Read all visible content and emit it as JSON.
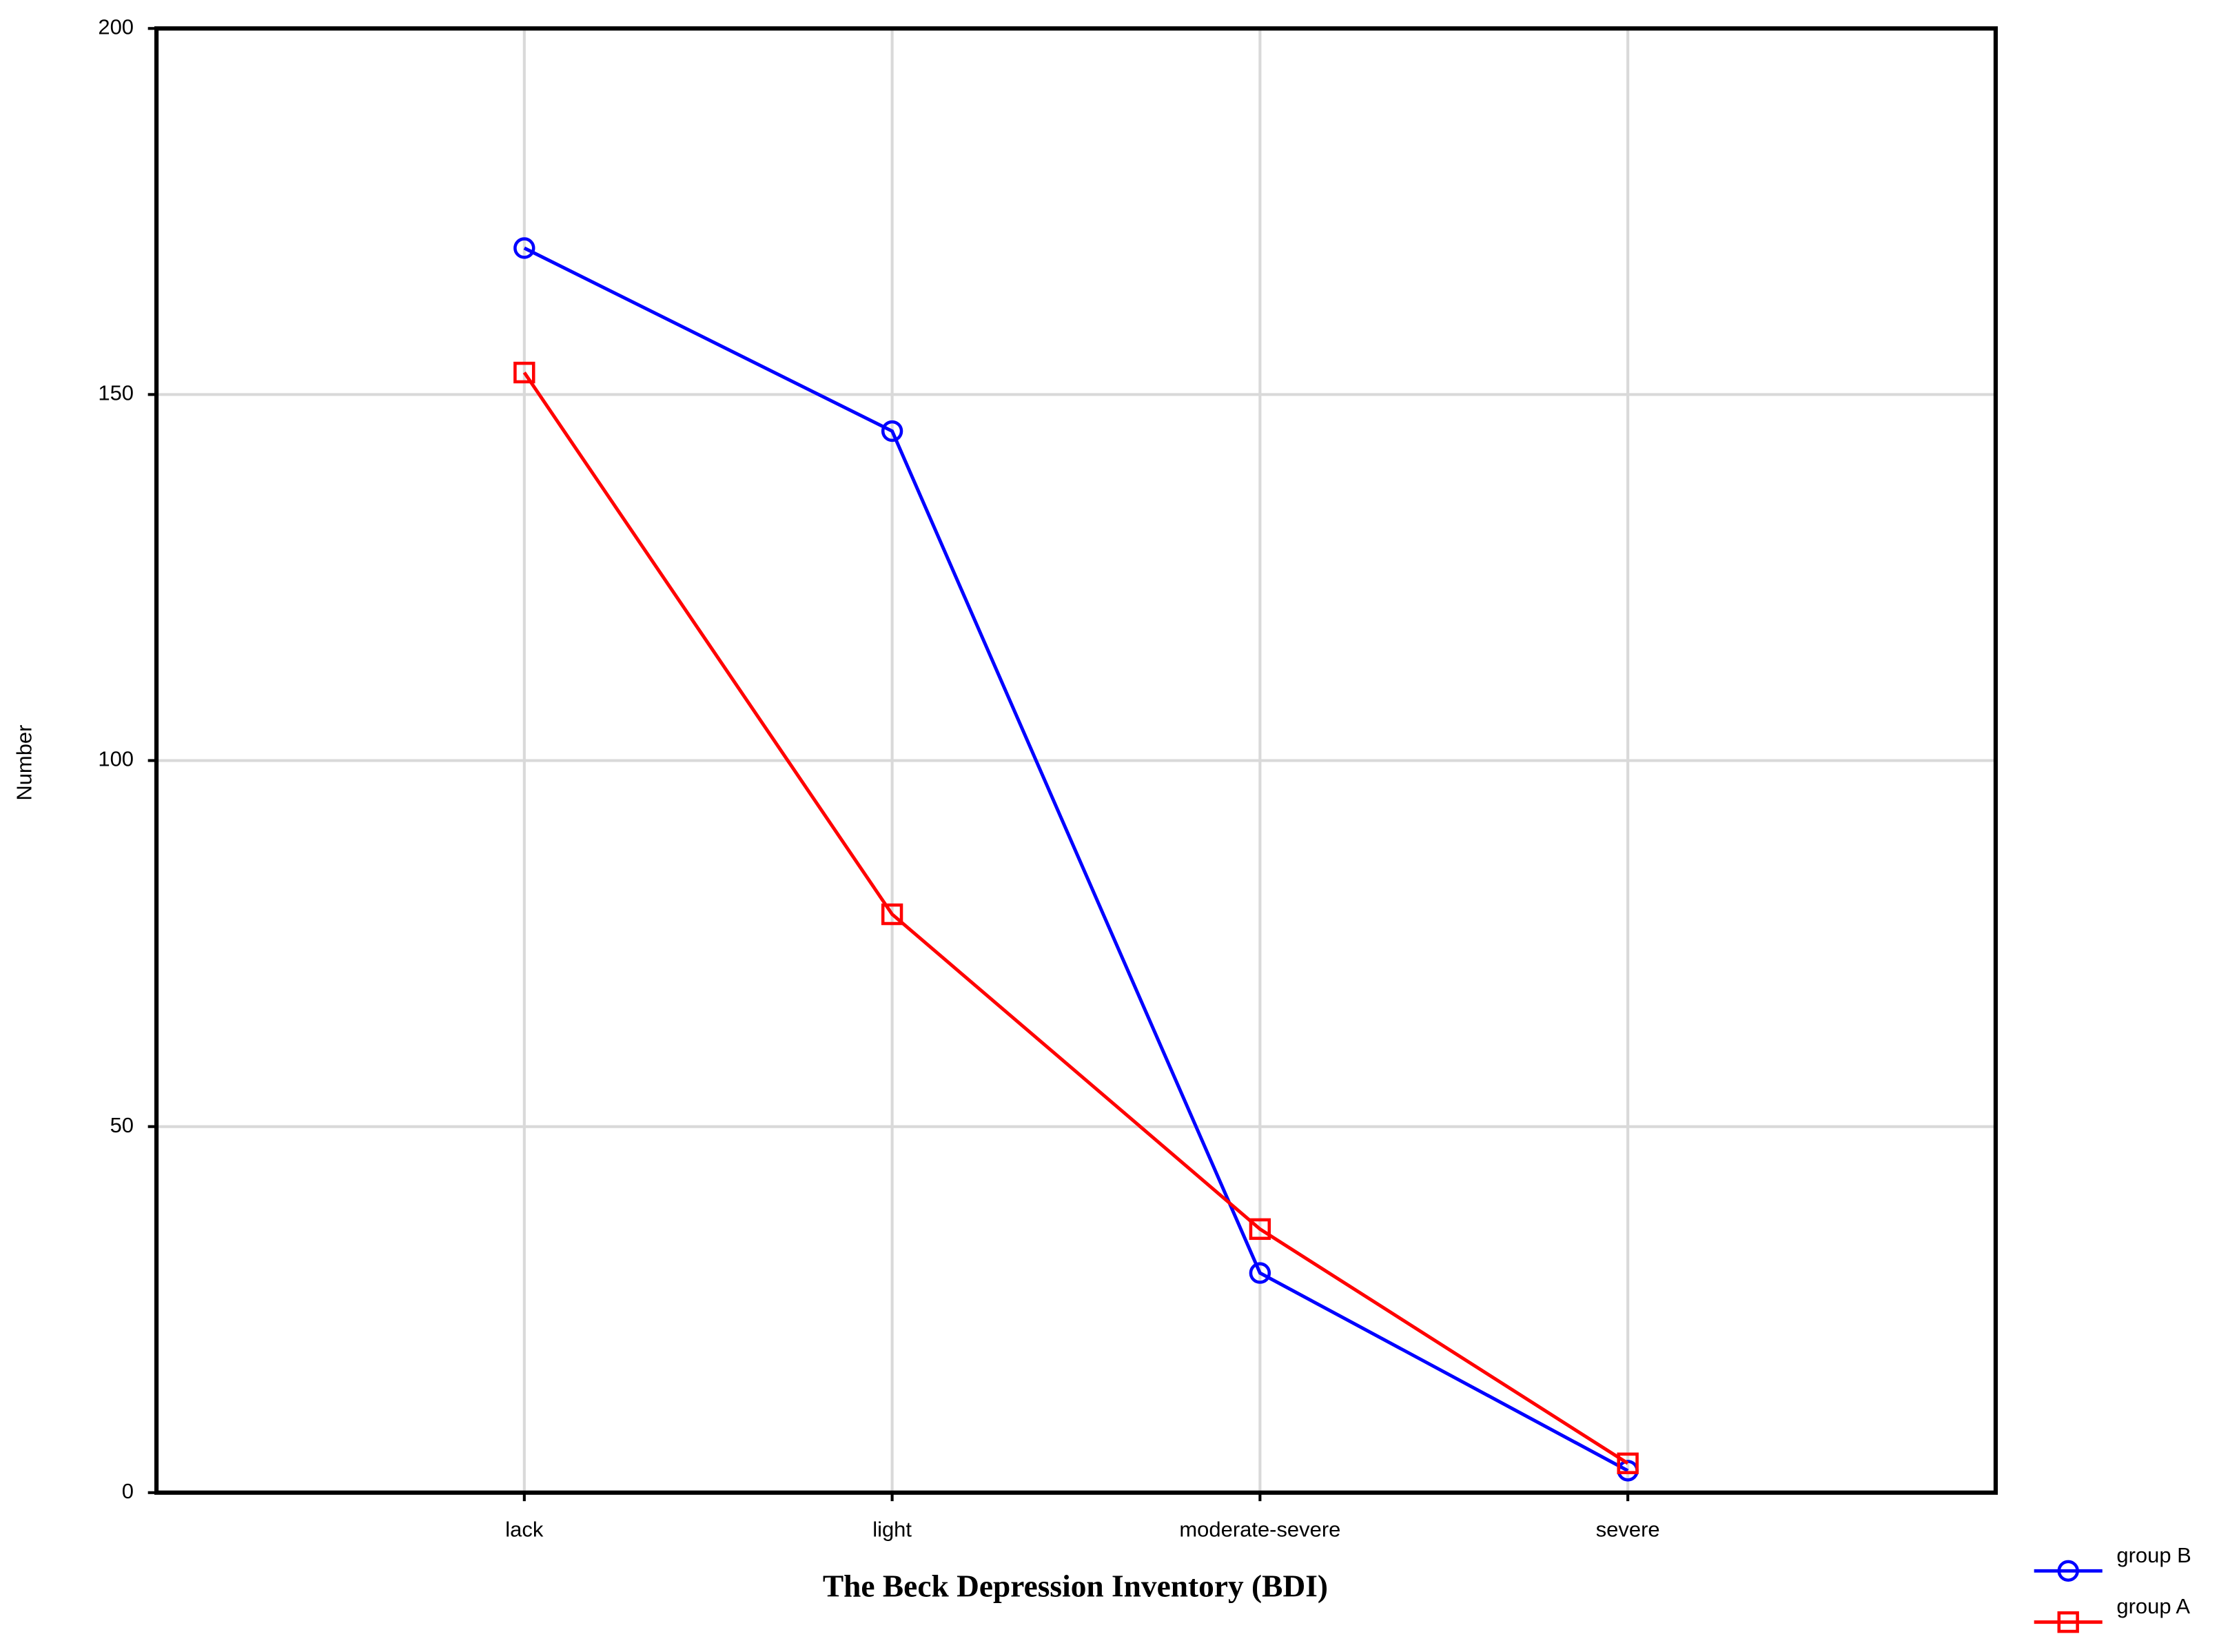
{
  "chart_data": {
    "type": "line",
    "xlabel": "The Beck Depression Inventory (BDI)",
    "ylabel": "Number",
    "categories": [
      "lack",
      "light",
      "moderate-severe",
      "severe"
    ],
    "series": [
      {
        "name": "group B",
        "color": "#0000ff",
        "marker": "circle",
        "values": [
          170,
          145,
          30,
          3
        ]
      },
      {
        "name": "group A",
        "color": "#ff0000",
        "marker": "square",
        "values": [
          153,
          79,
          36,
          4
        ]
      }
    ],
    "ylim": [
      0,
      200
    ],
    "yticks": [
      0,
      50,
      100,
      150,
      200
    ],
    "grid": true,
    "legend": "bottom-right"
  }
}
